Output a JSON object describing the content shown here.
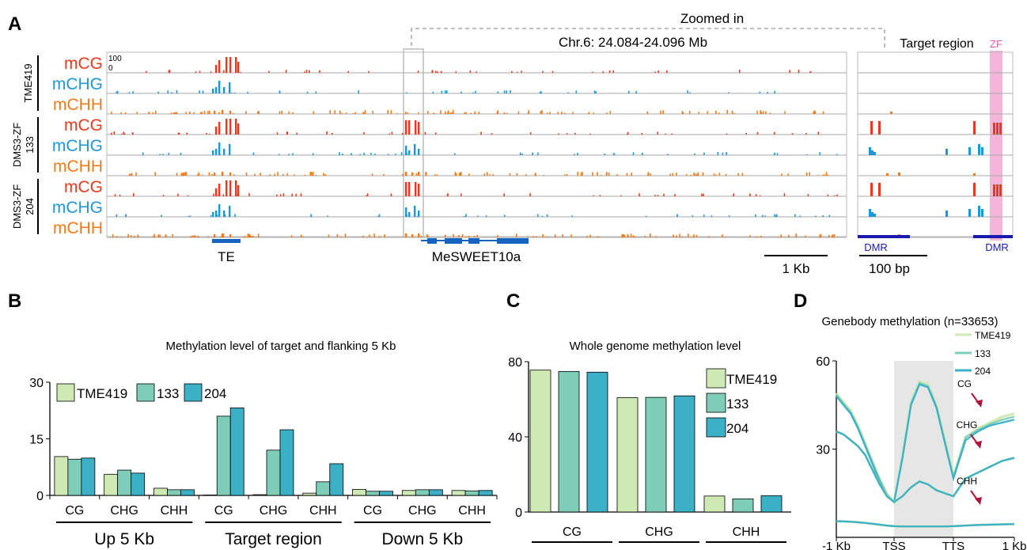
{
  "panels": {
    "a": "A",
    "b": "B",
    "c": "C",
    "d": "D"
  },
  "browser": {
    "zoom_label": "Zoomed in",
    "coord_label": "Chr.6: 24.084-24.096 Mb",
    "target_label": "Target region",
    "zf_label": "ZF",
    "scale_top": "100",
    "scale_bottom": "0",
    "track_labels": [
      "mCG",
      "mCHG",
      "mCHH"
    ],
    "samples": [
      "TME419",
      "DMS3-ZF\n133",
      "DMS3-ZF\n204"
    ],
    "te_label": "TE",
    "gene_label": "MeSWEET10a",
    "dmr_label": "DMR",
    "scalebar_main": "1 Kb",
    "scalebar_zoom": "100 bp",
    "colors": {
      "mCG": "#e8391e",
      "mCHG": "#1f96d8",
      "mCHH": "#f07a1a",
      "gene": "#1565c0",
      "dmr": "#1a1ab0",
      "zf": "#f3b6d8"
    }
  },
  "legend": [
    "TME419",
    "133",
    "204"
  ],
  "series_colors": [
    "#cfe9b5",
    "#7ecdb8",
    "#3bb0c6"
  ],
  "chart_data": [
    {
      "type": "bar",
      "id": "B",
      "title": "Methylation level of target and flanking 5 Kb",
      "categories": [
        "CG",
        "CHG",
        "CHH",
        "CG",
        "CHG",
        "CHH",
        "CG",
        "CHG",
        "CHH"
      ],
      "groups": [
        "Up 5 Kb",
        "Target region",
        "Down 5 Kb"
      ],
      "series": [
        {
          "name": "TME419",
          "values": [
            10.3,
            5.6,
            1.9,
            0.1,
            0.2,
            0.6,
            1.6,
            1.3,
            1.3
          ]
        },
        {
          "name": "133",
          "values": [
            9.6,
            6.7,
            1.5,
            21.0,
            12.0,
            3.6,
            1.1,
            1.5,
            1.2
          ]
        },
        {
          "name": "204",
          "values": [
            9.9,
            5.9,
            1.5,
            23.2,
            17.4,
            8.4,
            1.1,
            1.5,
            1.3
          ]
        }
      ],
      "yticks": [
        0,
        15,
        30
      ],
      "ylim": [
        0,
        30
      ]
    },
    {
      "type": "bar",
      "id": "C",
      "title": "Whole genome methylation level",
      "categories": [
        "CG",
        "CHG",
        "CHH"
      ],
      "series": [
        {
          "name": "TME419",
          "values": [
            75.5,
            60.8,
            8.5
          ]
        },
        {
          "name": "133",
          "values": [
            74.8,
            61.0,
            7.0
          ]
        },
        {
          "name": "204",
          "values": [
            74.4,
            61.8,
            8.7
          ]
        }
      ],
      "yticks": [
        0,
        40,
        80
      ],
      "ylim": [
        0,
        80
      ]
    },
    {
      "type": "line",
      "id": "D",
      "title": "Genebody methylation (n=33653)",
      "xticks": [
        "-1 Kb",
        "TSS",
        "TTS",
        "1 Kb"
      ],
      "yticks": [
        30,
        60
      ],
      "ylim": [
        0,
        60
      ],
      "shaded_region": [
        "TSS",
        "TTS"
      ],
      "annotations": [
        "CG",
        "CHG",
        "CHH"
      ],
      "series": [
        {
          "name": "TME419",
          "context": "CG",
          "values": [
            49,
            46,
            43,
            38,
            32,
            26,
            20,
            15,
            12,
            28,
            46,
            53,
            52,
            45,
            33,
            21,
            34,
            37,
            39,
            41,
            42
          ]
        },
        {
          "name": "133",
          "context": "CG",
          "values": [
            48.5,
            45.5,
            42.5,
            37.5,
            31.5,
            25.5,
            19.5,
            14.5,
            12,
            27.5,
            45.5,
            52.5,
            51.5,
            44.5,
            32.5,
            20.5,
            34,
            36.5,
            38.5,
            40,
            41
          ]
        },
        {
          "name": "204",
          "context": "CG",
          "values": [
            48,
            45,
            42,
            37,
            31,
            25,
            19,
            14,
            12,
            27,
            45,
            52,
            51,
            44,
            32,
            20,
            33,
            36,
            38,
            39,
            40
          ]
        },
        {
          "name": "TME419",
          "context": "CHG",
          "values": [
            36,
            35,
            33,
            31,
            28,
            23,
            18,
            14,
            12,
            14,
            17,
            19,
            18,
            16,
            15,
            14,
            20,
            22,
            24,
            26,
            27
          ]
        },
        {
          "name": "133",
          "context": "CHG",
          "values": [
            36,
            35,
            33,
            31,
            28,
            23,
            18,
            14,
            12,
            14,
            17,
            19,
            18,
            16,
            15,
            14,
            20,
            22,
            24,
            26,
            27
          ]
        },
        {
          "name": "204",
          "context": "CHG",
          "values": [
            36,
            35,
            33,
            31,
            28,
            23,
            18,
            14,
            12,
            14,
            17,
            19,
            18,
            16,
            15,
            14,
            20,
            22,
            24,
            26,
            27
          ]
        },
        {
          "name": "TME419",
          "context": "CHH",
          "values": [
            5.5,
            5.4,
            5.3,
            5.1,
            4.9,
            4.6,
            4.3,
            4,
            3.8,
            3.7,
            3.7,
            3.7,
            3.7,
            3.7,
            3.7,
            3.8,
            4,
            4.2,
            4.3,
            4.4,
            4.5
          ]
        },
        {
          "name": "133",
          "context": "CHH",
          "values": [
            5.5,
            5.4,
            5.3,
            5.1,
            4.9,
            4.6,
            4.3,
            4,
            3.8,
            3.7,
            3.7,
            3.7,
            3.7,
            3.7,
            3.7,
            3.8,
            4,
            4.2,
            4.3,
            4.4,
            4.5
          ]
        },
        {
          "name": "204",
          "context": "CHH",
          "values": [
            5.5,
            5.4,
            5.3,
            5.1,
            4.9,
            4.6,
            4.3,
            4,
            3.8,
            3.7,
            3.7,
            3.7,
            3.7,
            3.7,
            3.7,
            3.8,
            4,
            4.2,
            4.3,
            4.4,
            4.5
          ]
        }
      ]
    }
  ]
}
